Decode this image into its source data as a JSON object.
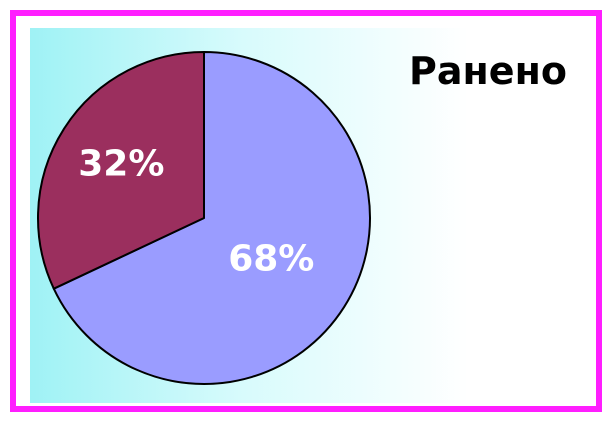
{
  "chart_data": {
    "type": "pie",
    "title": "Ранено",
    "start_angle_deg": 0,
    "direction": "clockwise",
    "slices": [
      {
        "value": 68,
        "label": "68%",
        "color": "#9a9cff"
      },
      {
        "value": 32,
        "label": "32%",
        "color": "#9b2f5e"
      }
    ]
  },
  "colors": {
    "border": "#ff1eff",
    "outline": "#000000"
  }
}
